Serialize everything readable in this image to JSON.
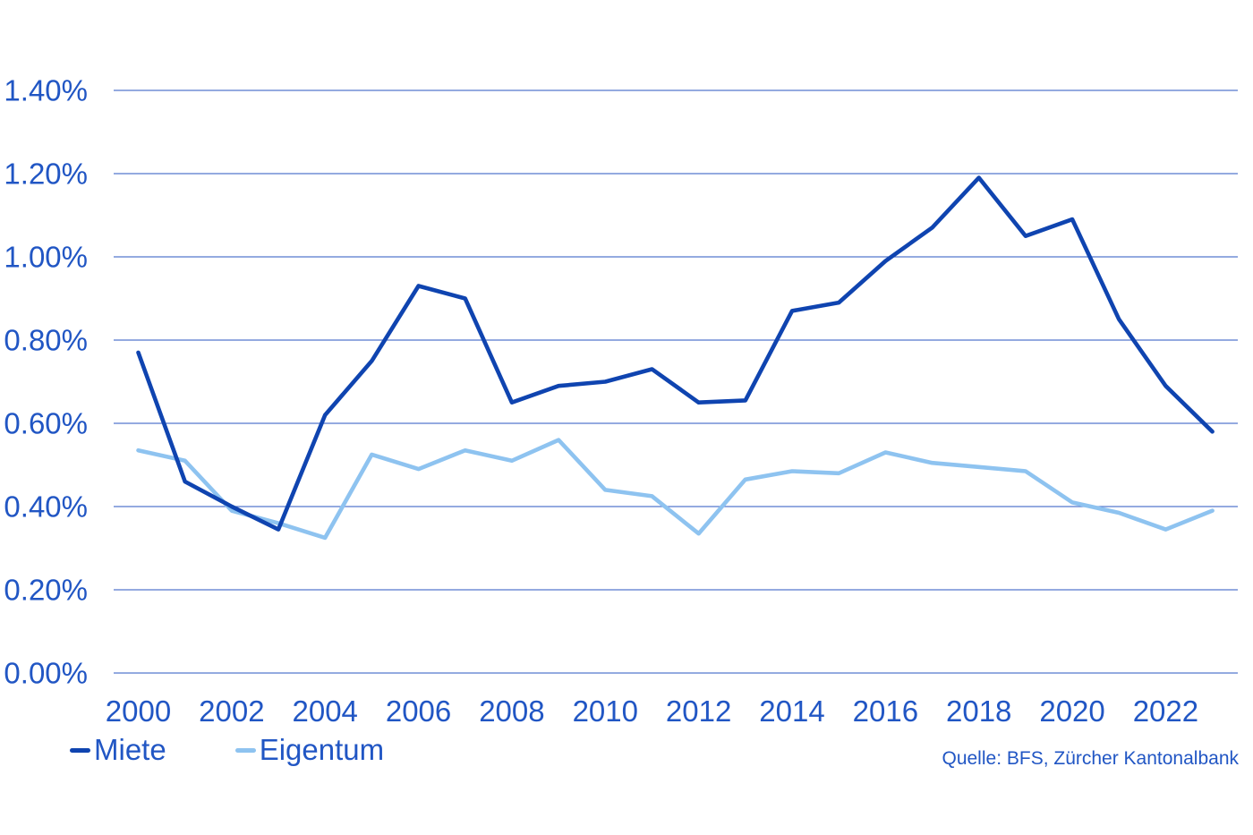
{
  "chart_data": {
    "type": "line",
    "title": "",
    "xlabel": "",
    "ylabel": "",
    "unit": "percent",
    "x": [
      2000,
      2001,
      2002,
      2003,
      2004,
      2005,
      2006,
      2007,
      2008,
      2009,
      2010,
      2011,
      2012,
      2013,
      2014,
      2015,
      2016,
      2017,
      2018,
      2019,
      2020,
      2021,
      2022,
      2023
    ],
    "series": [
      {
        "name": "Miete",
        "color": "#0f44b0",
        "values": [
          0.77,
          0.46,
          0.4,
          0.345,
          0.62,
          0.75,
          0.93,
          0.9,
          0.65,
          0.69,
          0.7,
          0.73,
          0.65,
          0.655,
          0.87,
          0.89,
          0.99,
          1.07,
          1.19,
          1.05,
          1.09,
          0.85,
          0.69,
          0.58
        ]
      },
      {
        "name": "Eigentum",
        "color": "#8ec3f0",
        "values": [
          0.535,
          0.51,
          0.39,
          0.36,
          0.325,
          0.525,
          0.49,
          0.535,
          0.51,
          0.56,
          0.44,
          0.425,
          0.335,
          0.465,
          0.485,
          0.48,
          0.53,
          0.505,
          0.495,
          0.485,
          0.41,
          0.385,
          0.345,
          0.39
        ]
      }
    ],
    "ylim": [
      0,
      1.4
    ],
    "ytick_values": [
      0,
      0.2,
      0.4,
      0.6,
      0.8,
      1.0,
      1.2,
      1.4
    ],
    "ytick_labels": [
      "0.00%",
      "0.20%",
      "0.40%",
      "0.60%",
      "0.80%",
      "1.00%",
      "1.20%",
      "1.40%"
    ],
    "xtick_values": [
      2000,
      2002,
      2004,
      2006,
      2008,
      2010,
      2012,
      2014,
      2016,
      2018,
      2020,
      2022
    ],
    "xtick_labels": [
      "2000",
      "2002",
      "2004",
      "2006",
      "2008",
      "2010",
      "2012",
      "2014",
      "2016",
      "2018",
      "2020",
      "2022"
    ],
    "grid": "horizontal",
    "legend_position": "bottom-left"
  },
  "legend": {
    "items": [
      {
        "label": "Miete",
        "color": "#0f44b0"
      },
      {
        "label": "Eigentum",
        "color": "#8ec3f0"
      }
    ]
  },
  "source": {
    "text": "Quelle: BFS, Zürcher Kantonalbank"
  },
  "colors": {
    "axis_text": "#2156c4",
    "gridline": "#5577cd",
    "background": "#ffffff"
  }
}
